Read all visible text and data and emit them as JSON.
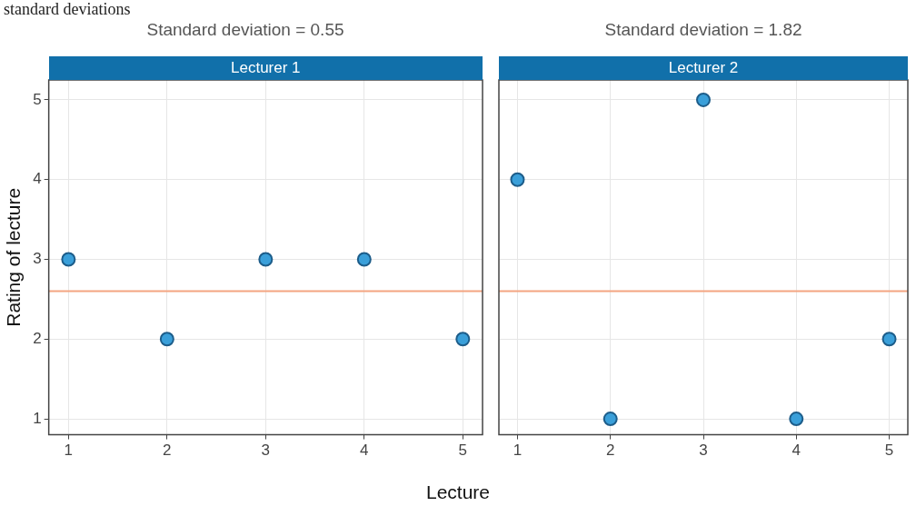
{
  "chart_data": [
    {
      "type": "scatter",
      "title": "Lecturer 1",
      "subtitle": "Standard deviation = 0.55",
      "xlabel": "Lecture",
      "ylabel": "Rating of lecture",
      "annotations": [
        "standard deviations"
      ],
      "x": [
        1,
        2,
        3,
        4,
        5
      ],
      "values": [
        3,
        2,
        3,
        3,
        2
      ],
      "color": "#3a9fd9",
      "marker": "circle",
      "xlim": [
        0.8,
        5.2
      ],
      "ylim": [
        0.8,
        5.25
      ],
      "xticks": [
        1,
        2,
        3,
        4,
        5
      ],
      "yticks": [
        1,
        2,
        3,
        4,
        5
      ],
      "grid": true,
      "ref_lines": [
        {
          "axis": "y",
          "value": 2.6,
          "color": "#f4a582"
        }
      ]
    },
    {
      "type": "scatter",
      "title": "Lecturer 2",
      "subtitle": "Standard deviation = 1.82",
      "x": [
        1,
        2,
        3,
        4,
        5
      ],
      "values": [
        4,
        1,
        5,
        1,
        2
      ],
      "color": "#3a9fd9",
      "marker": "circle",
      "xlim": [
        0.8,
        5.2
      ],
      "ylim": [
        0.8,
        5.25
      ],
      "xticks": [
        1,
        2,
        3,
        4,
        5
      ],
      "yticks": [
        1,
        2,
        3,
        4,
        5
      ],
      "grid": true,
      "tick_labels": "x",
      "ref_lines": [
        {
          "axis": "y",
          "value": 2.6,
          "color": "#f4a582"
        }
      ]
    }
  ]
}
